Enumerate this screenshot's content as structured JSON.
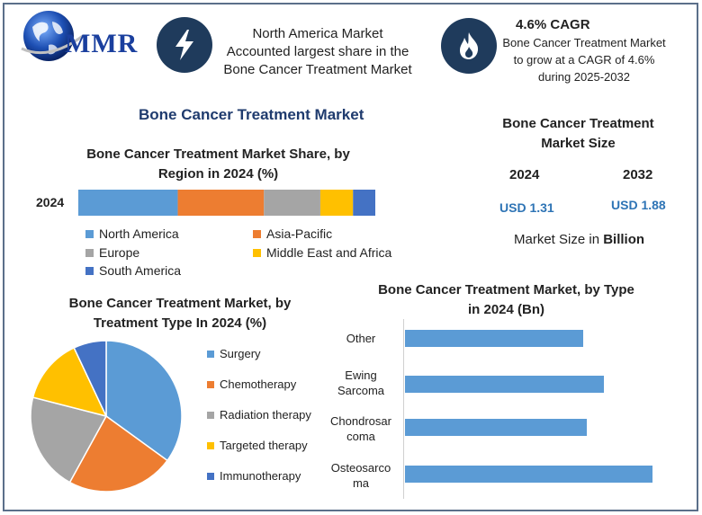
{
  "brand": {
    "logo_text": "MMR"
  },
  "header": {
    "card1_text": "North America Market Accounted largest share in the Bone Cancer Treatment Market",
    "card2_title": "4.6% CAGR",
    "card2_text": "Bone Cancer Treatment Market to grow at a CAGR of 4.6% during 2025-2032",
    "card1_icon": "lightning-icon",
    "card2_icon": "flame-icon"
  },
  "main_title": "Bone Cancer Treatment Market",
  "market_size": {
    "title_line1": "Bone Cancer Treatment",
    "title_line2": "Market Size",
    "year1": "2024",
    "year2": "2032",
    "value1": "USD 1.31",
    "value2": "USD 1.88",
    "caption_prefix": "Market Size in ",
    "caption_bold": "Billion"
  },
  "colors": {
    "north_america": "#5b9bd5",
    "asia_pacific": "#ed7d31",
    "europe": "#a5a5a5",
    "mea": "#ffc000",
    "south_america": "#4472c4",
    "frame": "#5b6f8a",
    "title_blue": "#1f3b6e"
  },
  "chart_data": [
    {
      "type": "bar",
      "orientation": "horizontal-stacked",
      "title_line1": "Bone Cancer Treatment Market Share, by",
      "title_line2": "Region in 2024 (%)",
      "categories": [
        "2024"
      ],
      "series": [
        {
          "name": "North America",
          "values": [
            33.5
          ]
        },
        {
          "name": "Asia-Pacific",
          "values": [
            29
          ]
        },
        {
          "name": "Europe",
          "values": [
            19
          ]
        },
        {
          "name": "Middle East and Africa",
          "values": [
            11
          ]
        },
        {
          "name": "South America",
          "values": [
            7.5
          ]
        }
      ],
      "legend": "bottom"
    },
    {
      "type": "pie",
      "title_line1": "Bone Cancer Treatment Market, by",
      "title_line2": "Treatment Type In 2024 (%)",
      "slices": [
        {
          "name": "Surgery",
          "value": 35,
          "color": "#5b9bd5"
        },
        {
          "name": "Chemotherapy",
          "value": 23,
          "color": "#ed7d31"
        },
        {
          "name": "Radiation therapy",
          "value": 21,
          "color": "#a5a5a5"
        },
        {
          "name": "Targeted therapy",
          "value": 14,
          "color": "#ffc000"
        },
        {
          "name": "Immunotherapy",
          "value": 7,
          "color": "#4472c4"
        }
      ],
      "legend": "right"
    },
    {
      "type": "bar",
      "orientation": "horizontal",
      "title_line1": "Bone Cancer Treatment Market, by Type",
      "title_line2": "in 2024 (Bn)",
      "categories": [
        {
          "line1": "Other",
          "line2": ""
        },
        {
          "line1": "Ewing",
          "line2": "Sarcoma"
        },
        {
          "line1": "Chondrosar",
          "line2": "coma"
        },
        {
          "line1": "Osteosarco",
          "line2": "ma"
        }
      ],
      "values": [
        0.26,
        0.29,
        0.265,
        0.36
      ],
      "xlim": [
        0,
        0.38
      ],
      "color": "#5b9bd5"
    }
  ]
}
